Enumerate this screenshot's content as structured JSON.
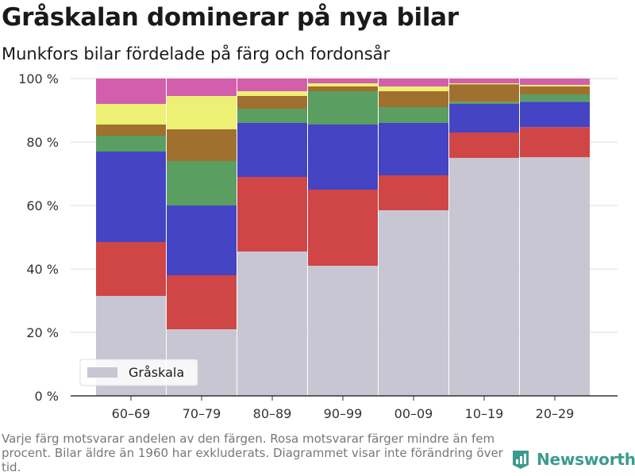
{
  "title": "Gråskalan dominerar på nya bilar",
  "subtitle": "Munkfors bilar fördelade på färg och fordonsår",
  "footnote": "Varje färg motsvarar andelen av den färgen. Rosa motsvarar färger mindre än fem procent. Bilar äldre än 1960 har exkluderats. Diagrammet visar inte förändring över tid.",
  "brand": {
    "name": "Newsworthy",
    "icon": "newsworthy-logo-icon",
    "color": "#3c9a8f"
  },
  "chart_data": {
    "type": "bar",
    "stacked": true,
    "normalized": true,
    "categories": [
      "60–69",
      "70–79",
      "80–89",
      "90–99",
      "00–09",
      "10–19",
      "20–29"
    ],
    "yticks": [
      "0 %",
      "20 %",
      "40 %",
      "60 %",
      "80 %",
      "100 %"
    ],
    "ylim": [
      0,
      100
    ],
    "grid": true,
    "legend": {
      "position": "bottom-left",
      "entries": [
        "Gråskala"
      ]
    },
    "series": [
      {
        "name": "Gråskala",
        "color": "#c8c6d2",
        "values": [
          31.5,
          21,
          45.5,
          41,
          58.5,
          75,
          75.2
        ]
      },
      {
        "color": "#d04545",
        "values": [
          17,
          17,
          23.5,
          24,
          11,
          8,
          9.5
        ]
      },
      {
        "color": "#4444c4",
        "values": [
          28.5,
          22,
          17,
          20.5,
          16.5,
          9,
          8
        ]
      },
      {
        "color": "#5a9e62",
        "values": [
          5,
          14,
          4.5,
          10.5,
          5,
          0.7,
          2.3
        ]
      },
      {
        "color": "#a0702f",
        "values": [
          3.5,
          10,
          4,
          1.5,
          5,
          5.5,
          2.5
        ]
      },
      {
        "color": "#ecf074",
        "values": [
          6.5,
          10.5,
          1.5,
          1,
          1.5,
          0.3,
          0.5
        ]
      },
      {
        "color": "#d35fac",
        "values": [
          8,
          5.5,
          4,
          1.5,
          2.5,
          1.5,
          2
        ]
      }
    ]
  }
}
